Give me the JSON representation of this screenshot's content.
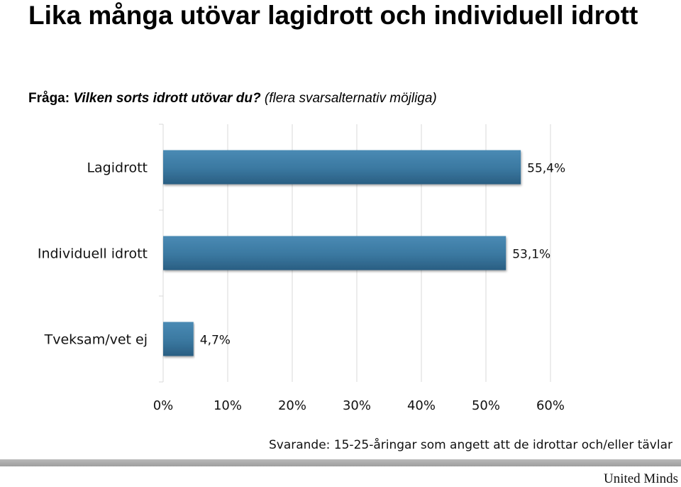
{
  "title": "Lika många utövar lagidrott och individuell idrott",
  "question": {
    "label": "Fråga:",
    "text": "Vilken sorts idrott utövar du?",
    "note": "(flera svarsalternativ möjliga)"
  },
  "chart_data": {
    "type": "bar",
    "orientation": "horizontal",
    "categories": [
      "Lagidrott",
      "Individuell idrott",
      "Tveksam/vet ej"
    ],
    "values": [
      55.4,
      53.1,
      4.7
    ],
    "value_labels": [
      "55,4%",
      "53,1%",
      "4,7%"
    ],
    "xlim": [
      0,
      60
    ],
    "x_ticks": [
      0,
      10,
      20,
      30,
      40,
      50,
      60
    ],
    "x_tick_labels": [
      "0%",
      "10%",
      "20%",
      "30%",
      "40%",
      "50%",
      "60%"
    ],
    "grid": true,
    "bar_color": "#3a78a0"
  },
  "footnote": "Svarande: 15-25-åringar som angett att de idrottar och/eller tävlar",
  "brand": "United Minds"
}
